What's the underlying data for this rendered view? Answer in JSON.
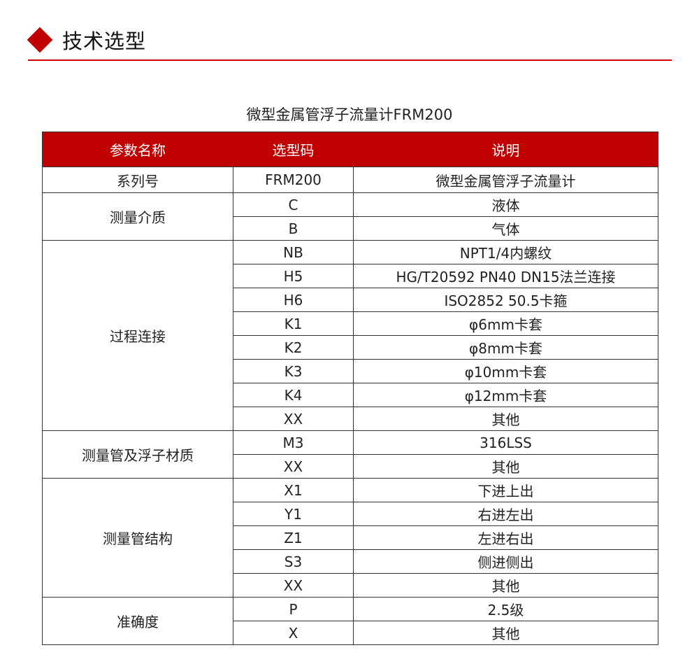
{
  "section": {
    "title": "技术选型",
    "accent_color": "#c00000"
  },
  "table_title": "微型金属管浮子流量计FRM200",
  "headers": [
    "参数名称",
    "选型码",
    "说明"
  ],
  "groups": [
    {
      "name": "系列号",
      "rows": [
        [
          "FRM200",
          "微型金属管浮子流量计"
        ]
      ]
    },
    {
      "name": "测量介质",
      "rows": [
        [
          "C",
          "液体"
        ],
        [
          "B",
          "气体"
        ]
      ]
    },
    {
      "name": "过程连接",
      "rows": [
        [
          "NB",
          "NPT1/4内螺纹"
        ],
        [
          "H5",
          "HG/T20592 PN40 DN15法兰连接"
        ],
        [
          "H6",
          "ISO2852 50.5卡箍"
        ],
        [
          "K1",
          "φ6mm卡套"
        ],
        [
          "K2",
          "φ8mm卡套"
        ],
        [
          "K3",
          "φ10mm卡套"
        ],
        [
          "K4",
          "φ12mm卡套"
        ],
        [
          "XX",
          "其他"
        ]
      ]
    },
    {
      "name": "测量管及浮子材质",
      "rows": [
        [
          "M3",
          "316LSS"
        ],
        [
          "XX",
          "其他"
        ]
      ]
    },
    {
      "name": "测量管结构",
      "rows": [
        [
          "X1",
          "下进上出"
        ],
        [
          "Y1",
          "右进左出"
        ],
        [
          "Z1",
          "左进右出"
        ],
        [
          "S3",
          "侧进侧出"
        ],
        [
          "XX",
          "其他"
        ]
      ]
    },
    {
      "name": "准确度",
      "rows": [
        [
          "P",
          "2.5级"
        ],
        [
          "X",
          "其他"
        ]
      ]
    }
  ]
}
